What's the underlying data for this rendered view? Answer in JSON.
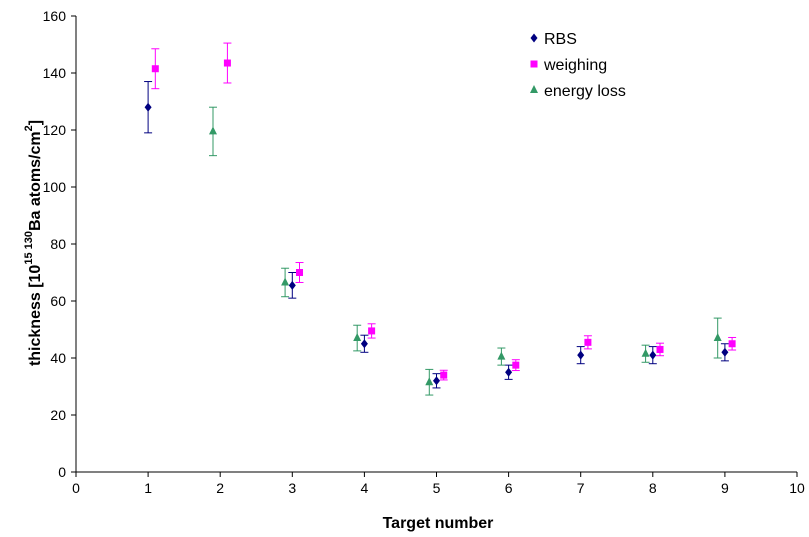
{
  "chart_data": {
    "type": "scatter",
    "xlabel": "Target number",
    "ylabel": {
      "prefix": "thickness [10",
      "sup1": "15 130",
      "mid": "Ba atoms/cm",
      "sup2": "2",
      "suffix": "]"
    },
    "xlim": [
      0,
      10
    ],
    "ylim": [
      0,
      160
    ],
    "xticks": [
      0,
      1,
      2,
      3,
      4,
      5,
      6,
      7,
      8,
      9,
      10
    ],
    "yticks": [
      0,
      20,
      40,
      60,
      80,
      100,
      120,
      140,
      160
    ],
    "grid": false,
    "legend_position": "top-right",
    "error_bars": true,
    "series": [
      {
        "name": "RBS",
        "marker": "diamond",
        "color": "#000080",
        "points": [
          {
            "x": 1.0,
            "y": 128,
            "err": 9
          },
          {
            "x": 3.0,
            "y": 65.5,
            "err": 4.5
          },
          {
            "x": 4.0,
            "y": 45,
            "err": 3
          },
          {
            "x": 5.0,
            "y": 32,
            "err": 2.5
          },
          {
            "x": 6.0,
            "y": 35,
            "err": 2.5
          },
          {
            "x": 7.0,
            "y": 41,
            "err": 3
          },
          {
            "x": 8.0,
            "y": 41,
            "err": 3
          },
          {
            "x": 9.0,
            "y": 42,
            "err": 3
          }
        ]
      },
      {
        "name": "weighing",
        "marker": "square",
        "color": "#FF00FF",
        "points": [
          {
            "x": 1.1,
            "y": 141.5,
            "err": 7
          },
          {
            "x": 2.1,
            "y": 143.5,
            "err": 7
          },
          {
            "x": 3.1,
            "y": 70,
            "err": 3.5
          },
          {
            "x": 4.1,
            "y": 49.5,
            "err": 2.5
          },
          {
            "x": 5.1,
            "y": 34,
            "err": 1.7
          },
          {
            "x": 6.1,
            "y": 37.5,
            "err": 1.9
          },
          {
            "x": 7.1,
            "y": 45.5,
            "err": 2.3
          },
          {
            "x": 8.1,
            "y": 43,
            "err": 2.2
          },
          {
            "x": 9.1,
            "y": 45,
            "err": 2.2
          }
        ]
      },
      {
        "name": "energy loss",
        "marker": "triangle",
        "color": "#339966",
        "points": [
          {
            "x": 1.9,
            "y": 119.5,
            "err": 8.5
          },
          {
            "x": 2.9,
            "y": 66.5,
            "err": 5
          },
          {
            "x": 3.9,
            "y": 47,
            "err": 4.5
          },
          {
            "x": 4.9,
            "y": 31.5,
            "err": 4.5
          },
          {
            "x": 5.9,
            "y": 40.5,
            "err": 3
          },
          {
            "x": 7.9,
            "y": 41.5,
            "err": 3
          },
          {
            "x": 8.9,
            "y": 47,
            "err": 7
          }
        ]
      }
    ]
  }
}
